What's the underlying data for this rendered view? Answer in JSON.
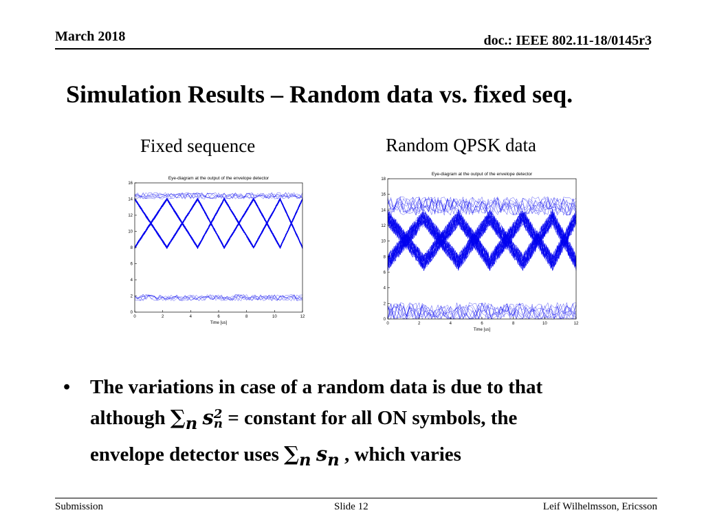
{
  "header": {
    "date": "March 2018",
    "doc": "doc.: IEEE 802.11-18/0145r3"
  },
  "slide": {
    "title": "Simulation Results – Random data vs. fixed seq.",
    "left_caption": "Fixed sequence",
    "right_caption": "Random QPSK data"
  },
  "bullet": {
    "line1": "The variations in case of a random data is due to that",
    "line2_a": "although ",
    "line2_sum": "∑",
    "line2_sub": "n",
    "line2_s": "s",
    "line2_sup": "2",
    "line2_sub2": "n",
    "line2_b": " = constant for all ON symbols, the",
    "line3_a": "envelope detector uses ",
    "line3_sum": "∑",
    "line3_sub": "n",
    "line3_s": "s",
    "line3_sub2": "n",
    "line3_b": " , which varies"
  },
  "footer": {
    "left": "Submission",
    "center": "Slide 12",
    "right": "Leif Wilhelmsson, Ericsson"
  },
  "chart_data": [
    {
      "type": "line",
      "title": "Eye-diagram at the output of the envelope detector",
      "xlabel": "Time [us]",
      "ylabel": "",
      "xlim": [
        0,
        12
      ],
      "ylim": [
        0,
        16
      ],
      "xticks": [
        "0",
        "2",
        "4",
        "6",
        "8",
        "10",
        "12"
      ],
      "yticks": [
        "0",
        "2",
        "4",
        "6",
        "8",
        "10",
        "12",
        "14",
        "16"
      ],
      "grid": false,
      "eye_crossings_x": [
        0,
        2.3,
        4.5,
        6.4,
        8.5,
        10.4,
        12
      ],
      "high_level": 14,
      "low_level": 2,
      "spread": "narrow",
      "series_color": "#0000ee"
    },
    {
      "type": "line",
      "title": "Eye-diagram at the output of the envelope detector",
      "xlabel": "Time [us]",
      "ylabel": "",
      "xlim": [
        0,
        12
      ],
      "ylim": [
        0,
        18
      ],
      "xticks": [
        "0",
        "2",
        "4",
        "6",
        "8",
        "10",
        "12"
      ],
      "yticks": [
        "0",
        "2",
        "4",
        "6",
        "8",
        "10",
        "12",
        "14",
        "16",
        "18"
      ],
      "grid": false,
      "eye_crossings_x": [
        0,
        2.3,
        4.5,
        6.5,
        8.6,
        10.5,
        12
      ],
      "high_level": 13,
      "low_level": 1.5,
      "spread": "wide",
      "series_color": "#0000ee"
    }
  ]
}
